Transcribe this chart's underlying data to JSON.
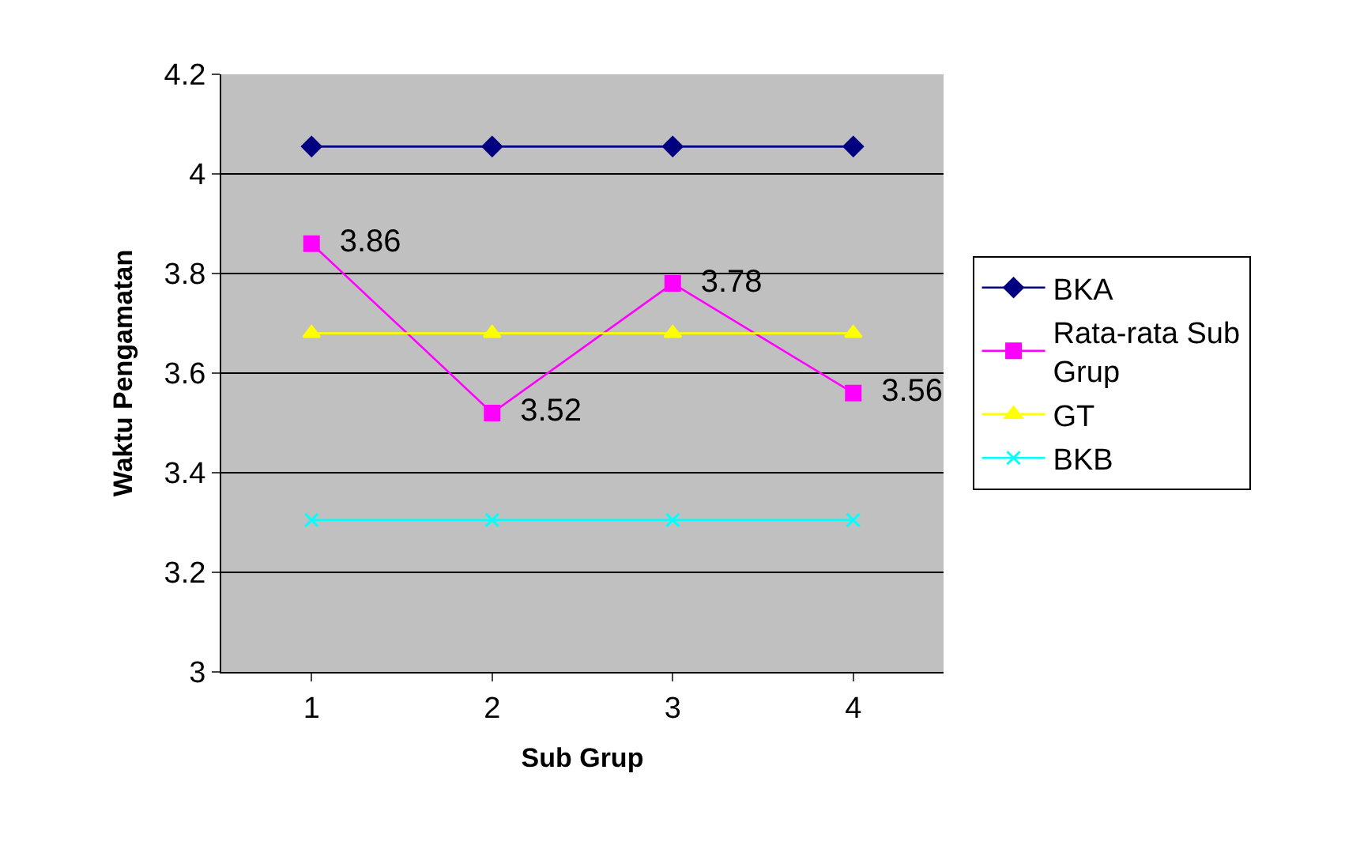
{
  "chart_data": {
    "type": "line",
    "xlabel": "Sub Grup",
    "ylabel": "Waktu Pengamatan",
    "categories": [
      "1",
      "2",
      "3",
      "4"
    ],
    "ylim": [
      3,
      4.2
    ],
    "yticks": [
      3,
      3.2,
      3.4,
      3.6,
      3.8,
      4,
      4.2
    ],
    "grid": "y",
    "legend": "right",
    "series": [
      {
        "name": "BKA",
        "color": "#000080",
        "marker": "diamond",
        "values": [
          4.055,
          4.055,
          4.055,
          4.055
        ]
      },
      {
        "name": "Rata-rata Sub Grup",
        "color": "#ff00ff",
        "marker": "square",
        "values": [
          3.86,
          3.52,
          3.78,
          3.56
        ],
        "value_labels": [
          "3.86",
          "3.52",
          "3.78",
          "3.56"
        ]
      },
      {
        "name": "GT",
        "color": "#ffff00",
        "marker": "triangle",
        "values": [
          3.68,
          3.68,
          3.68,
          3.68
        ]
      },
      {
        "name": "BKB",
        "color": "#00ffff",
        "marker": "cross",
        "values": [
          3.305,
          3.305,
          3.305,
          3.305
        ]
      }
    ]
  }
}
